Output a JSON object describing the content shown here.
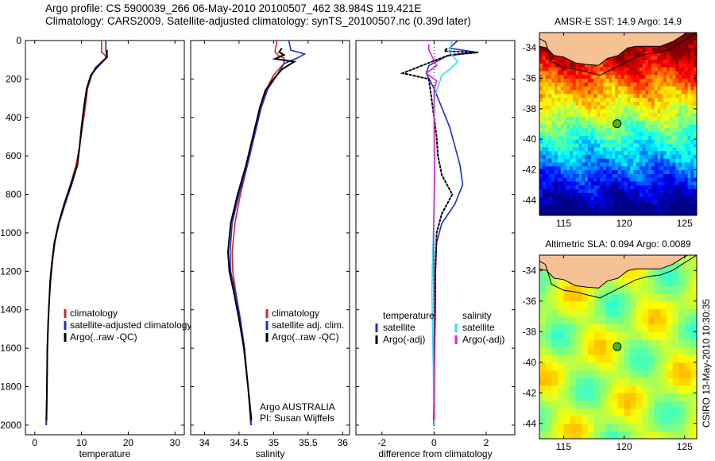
{
  "header": {
    "line1": "Argo profile: CS 5900039_266 06-May-2010 20100507_462 38.984S 119.421E",
    "line2": "Climatology: CARS2009. Satellite-adjusted climatology: synTS_20100507.nc (0.39d later)"
  },
  "side_label": "CSIRO 13-May-2010 10:30:35",
  "colors": {
    "red": "#e02020",
    "blue": "#1a2fd0",
    "black": "#000000",
    "cyan": "#33e0e8",
    "magenta": "#e020e0"
  },
  "chart_data": [
    {
      "type": "line",
      "xlabel": "temperature",
      "xlim": [
        -2,
        32
      ],
      "xticks": [
        "0",
        "10",
        "20",
        "30"
      ],
      "ylim": [
        0,
        2050
      ],
      "yticks": [
        "0",
        "200",
        "400",
        "600",
        "800",
        "1000",
        "1200",
        "1400",
        "1600",
        "1800",
        "2000"
      ],
      "y_reversed": true,
      "legend": {
        "placement": "lower-right",
        "entries": [
          "climatology",
          "satellite-adjusted climatology",
          "Argo(..raw -QC)"
        ]
      },
      "series": [
        {
          "color": "red",
          "points": [
            [
              14.3,
              0
            ],
            [
              14.3,
              60
            ],
            [
              15.0,
              75
            ],
            [
              15.2,
              90
            ],
            [
              13.0,
              140
            ],
            [
              12.2,
              180
            ],
            [
              11.3,
              250
            ],
            [
              10.8,
              350
            ],
            [
              10.2,
              450
            ],
            [
              9.6,
              550
            ],
            [
              8.8,
              650
            ],
            [
              7.6,
              750
            ],
            [
              6.3,
              850
            ],
            [
              5.1,
              950
            ],
            [
              4.3,
              1050
            ],
            [
              3.8,
              1150
            ],
            [
              3.4,
              1250
            ],
            [
              3.1,
              1350
            ],
            [
              2.9,
              1450
            ],
            [
              2.7,
              1600
            ],
            [
              2.6,
              1800
            ],
            [
              2.5,
              2000
            ]
          ]
        },
        {
          "color": "blue",
          "points": [
            [
              15.2,
              0
            ],
            [
              15.2,
              50
            ],
            [
              15.3,
              70
            ],
            [
              15.5,
              85
            ],
            [
              13.1,
              140
            ],
            [
              12.0,
              180
            ],
            [
              11.2,
              250
            ],
            [
              10.6,
              350
            ],
            [
              10.1,
              450
            ],
            [
              9.6,
              550
            ],
            [
              9.1,
              650
            ],
            [
              7.9,
              750
            ],
            [
              6.5,
              850
            ],
            [
              5.2,
              950
            ],
            [
              4.3,
              1050
            ],
            [
              3.7,
              1150
            ],
            [
              3.3,
              1250
            ],
            [
              3.1,
              1350
            ],
            [
              2.9,
              1450
            ],
            [
              2.7,
              1600
            ],
            [
              2.6,
              1800
            ],
            [
              2.4,
              2000
            ]
          ]
        },
        {
          "color": "black",
          "points": [
            [
              15.5,
              50
            ],
            [
              15.4,
              70
            ],
            [
              15.5,
              85
            ],
            [
              13.3,
              140
            ],
            [
              12.0,
              180
            ],
            [
              11.1,
              250
            ],
            [
              10.5,
              350
            ],
            [
              10.0,
              450
            ],
            [
              9.6,
              550
            ],
            [
              9.1,
              650
            ],
            [
              7.7,
              750
            ],
            [
              6.3,
              850
            ],
            [
              5.1,
              950
            ],
            [
              4.2,
              1050
            ],
            [
              3.7,
              1150
            ],
            [
              3.3,
              1250
            ],
            [
              3.1,
              1350
            ],
            [
              2.9,
              1450
            ],
            [
              2.7,
              1600
            ],
            [
              2.6,
              1800
            ],
            [
              2.5,
              1975
            ]
          ]
        }
      ]
    },
    {
      "type": "line",
      "xlabel": "salinity",
      "xlim": [
        33.8,
        36.1
      ],
      "xticks": [
        "34",
        "34.5",
        "35",
        "35.5",
        "36"
      ],
      "ylim": [
        0,
        2050
      ],
      "y_reversed": true,
      "legend": {
        "placement": "lower-right",
        "entries": [
          "climatology",
          "satellite adj. clim.",
          "Argo(..raw -QC)"
        ]
      },
      "annotation": [
        "Argo AUSTRALIA",
        "PI: Susan Wijffels"
      ],
      "series": [
        {
          "color": "red",
          "points": [
            [
              35.05,
              0
            ],
            [
              35.02,
              60
            ],
            [
              35.08,
              80
            ],
            [
              35.15,
              90
            ],
            [
              35.15,
              120
            ],
            [
              35.0,
              180
            ],
            [
              34.9,
              250
            ],
            [
              34.82,
              350
            ],
            [
              34.72,
              500
            ],
            [
              34.62,
              650
            ],
            [
              34.52,
              800
            ],
            [
              34.44,
              950
            ],
            [
              34.4,
              1100
            ],
            [
              34.41,
              1200
            ],
            [
              34.45,
              1300
            ],
            [
              34.52,
              1450
            ],
            [
              34.58,
              1600
            ],
            [
              34.63,
              1800
            ],
            [
              34.68,
              2000
            ]
          ]
        },
        {
          "color": "blue",
          "points": [
            [
              35.22,
              0
            ],
            [
              35.25,
              50
            ],
            [
              35.45,
              70
            ],
            [
              35.35,
              90
            ],
            [
              35.15,
              120
            ],
            [
              35.05,
              180
            ],
            [
              34.92,
              250
            ],
            [
              34.82,
              350
            ],
            [
              34.72,
              500
            ],
            [
              34.62,
              650
            ],
            [
              34.5,
              800
            ],
            [
              34.4,
              950
            ],
            [
              34.37,
              1100
            ],
            [
              34.38,
              1200
            ],
            [
              34.44,
              1300
            ],
            [
              34.52,
              1450
            ],
            [
              34.58,
              1600
            ],
            [
              34.63,
              1800
            ],
            [
              34.67,
              2000
            ]
          ]
        },
        {
          "color": "black",
          "points": [
            [
              35.12,
              40
            ],
            [
              35.08,
              60
            ],
            [
              35.15,
              75
            ],
            [
              35.02,
              95
            ],
            [
              35.3,
              110
            ],
            [
              35.12,
              150
            ],
            [
              35.0,
              200
            ],
            [
              34.88,
              260
            ],
            [
              34.8,
              350
            ],
            [
              34.7,
              500
            ],
            [
              34.6,
              650
            ],
            [
              34.48,
              800
            ],
            [
              34.38,
              950
            ],
            [
              34.34,
              1100
            ],
            [
              34.36,
              1200
            ],
            [
              34.42,
              1300
            ],
            [
              34.5,
              1450
            ],
            [
              34.57,
              1600
            ],
            [
              34.63,
              1800
            ],
            [
              34.68,
              1975
            ]
          ]
        }
      ]
    },
    {
      "type": "line",
      "xlabel": "difference from climatology",
      "xlim": [
        -3,
        3.1
      ],
      "xticks": [
        "-2",
        "0",
        "2"
      ],
      "ylim": [
        0,
        2050
      ],
      "y_reversed": true,
      "zero_line": true,
      "legend": {
        "placement": "lower-right",
        "groups": [
          {
            "title": "temperature",
            "entries": [
              "satellite",
              "Argo(-adj)"
            ]
          },
          {
            "title": "salinity",
            "entries": [
              "satellite",
              "Argo(-adj)"
            ]
          }
        ]
      },
      "series": [
        {
          "color": "blue",
          "points": [
            [
              0.9,
              0
            ],
            [
              0.6,
              40
            ],
            [
              1.6,
              60
            ],
            [
              0.5,
              80
            ],
            [
              -0.2,
              130
            ],
            [
              -0.3,
              170
            ],
            [
              0.0,
              250
            ],
            [
              0.3,
              350
            ],
            [
              0.6,
              450
            ],
            [
              0.8,
              550
            ],
            [
              1.0,
              650
            ],
            [
              1.1,
              750
            ],
            [
              0.8,
              850
            ],
            [
              0.3,
              950
            ],
            [
              0.1,
              1050
            ],
            [
              0.05,
              1200
            ],
            [
              0.05,
              1400
            ],
            [
              0.02,
              1600
            ],
            [
              0.0,
              1800
            ],
            [
              -0.02,
              2000
            ]
          ]
        },
        {
          "color": "black",
          "points": [
            [
              0.5,
              40
            ],
            [
              0.4,
              55
            ],
            [
              1.7,
              62
            ],
            [
              0.6,
              75
            ],
            [
              0.1,
              100
            ],
            [
              -1.2,
              170
            ],
            [
              -0.2,
              200
            ],
            [
              -0.1,
              300
            ],
            [
              0.0,
              400
            ],
            [
              0.1,
              500
            ],
            [
              0.15,
              600
            ],
            [
              0.3,
              700
            ],
            [
              0.7,
              800
            ],
            [
              0.3,
              900
            ],
            [
              0.1,
              1000
            ],
            [
              0.05,
              1200
            ],
            [
              0.02,
              1500
            ],
            [
              0.0,
              1800
            ],
            [
              0.0,
              1975
            ]
          ]
        },
        {
          "color": "cyan",
          "points": [
            [
              0.7,
              0
            ],
            [
              0.6,
              60
            ],
            [
              0.9,
              110
            ],
            [
              0.6,
              150
            ],
            [
              0.3,
              180
            ],
            [
              0.0,
              300
            ],
            [
              0.0,
              500
            ],
            [
              0.02,
              700
            ],
            [
              0.0,
              900
            ],
            [
              -0.05,
              1100
            ],
            [
              -0.08,
              1300
            ],
            [
              -0.06,
              1500
            ],
            [
              -0.03,
              1700
            ],
            [
              0.0,
              2000
            ]
          ]
        },
        {
          "color": "magenta",
          "points": [
            [
              -0.2,
              20
            ],
            [
              -0.2,
              50
            ],
            [
              0.1,
              130
            ],
            [
              -0.3,
              170
            ],
            [
              0.1,
              210
            ],
            [
              0.0,
              260
            ],
            [
              0.0,
              400
            ],
            [
              0.02,
              700
            ],
            [
              -0.02,
              1000
            ],
            [
              0.0,
              1500
            ],
            [
              0.0,
              1975
            ]
          ]
        }
      ]
    },
    {
      "type": "heatmap",
      "title": "AMSR-E SST: 14.9 Argo: 14.9",
      "xlim": [
        113,
        126
      ],
      "ylim": [
        -45,
        -33
      ],
      "xticks": [
        "115",
        "120",
        "125"
      ],
      "yticks": [
        "-34",
        "-36",
        "-38",
        "-40",
        "-42",
        "-44"
      ],
      "marker": [
        119.42,
        -38.98
      ],
      "colormap": "jet"
    },
    {
      "type": "heatmap",
      "title": "Altimetric SLA: 0.094 Argo: 0.0089",
      "xlim": [
        113,
        126
      ],
      "ylim": [
        -45,
        -33
      ],
      "xticks": [
        "115",
        "120",
        "125"
      ],
      "yticks": [
        "-34",
        "-36",
        "-38",
        "-40",
        "-42",
        "-44"
      ],
      "marker": [
        119.42,
        -38.98
      ],
      "colormap": "jet"
    }
  ]
}
